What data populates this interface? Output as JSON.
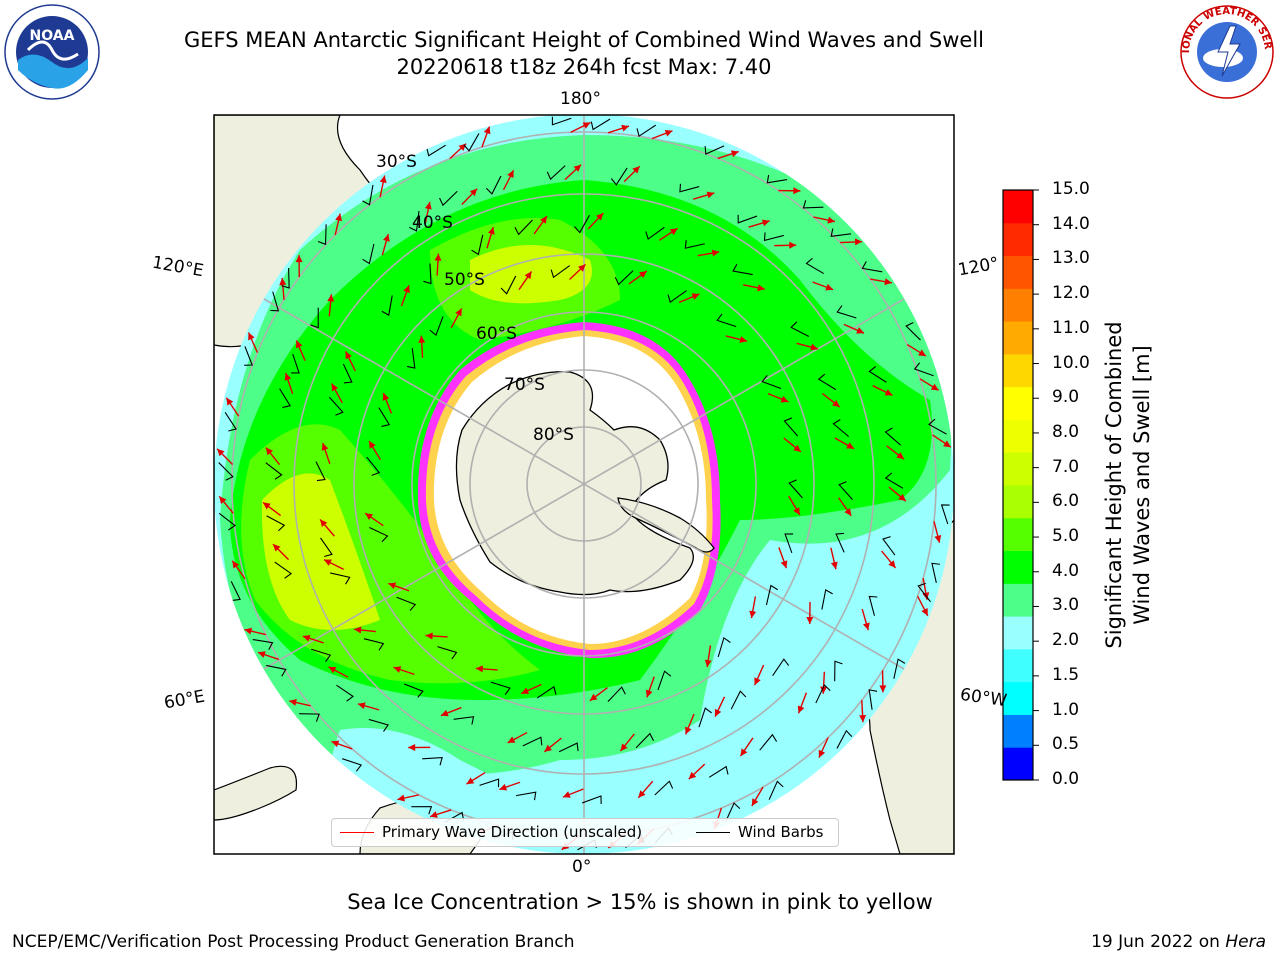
{
  "title": {
    "line1": "GEFS MEAN Antarctic Significant Height of Combined Wind Waves and Swell",
    "line2": "20220618 t18z 264h fcst   Max: 7.40"
  },
  "longitude_labels": {
    "top": "180°",
    "left_upper": "120°E",
    "right_upper": "120°",
    "left_lower": "60°E",
    "right_lower": "60°W",
    "bottom": "0°"
  },
  "latitude_labels": [
    "30°S",
    "40°S",
    "50°S",
    "60°S",
    "70°S",
    "80°S"
  ],
  "colorbar": {
    "title_line1": "Significant Height of Combined",
    "title_line2": "Wind Waves and Swell [m]",
    "ticks": [
      "15.0",
      "14.0",
      "13.0",
      "12.0",
      "11.0",
      "10.0",
      "9.0",
      "8.0",
      "7.0",
      "6.0",
      "5.0",
      "4.0",
      "3.0",
      "2.0",
      "1.5",
      "1.0",
      "0.5",
      "0.0"
    ],
    "colors_bottom_to_top": [
      "#0000ff",
      "#0080ff",
      "#00ffff",
      "#40ffff",
      "#99ffff",
      "#4dff88",
      "#00ff00",
      "#55ff00",
      "#aaff00",
      "#ccff00",
      "#eeff00",
      "#ffff00",
      "#ffd700",
      "#ffaa00",
      "#ff8000",
      "#ff5500",
      "#ff2a00",
      "#ff0000"
    ]
  },
  "legend": {
    "wave_label": "Primary Wave Direction (unscaled)",
    "barb_label": "Wind Barbs",
    "wave_color": "#ff0000",
    "barb_color": "#000000"
  },
  "colors": {
    "land": "#efefdf",
    "ice_shelf": "#ffffff",
    "sea_ice_edge": "#ff33ff",
    "graticule": "#b0b0b0"
  },
  "sea_ice_note": "Sea Ice Concentration > 15% is shown in pink to yellow",
  "footer": {
    "left": "NCEP/EMC/Verification Post Processing Product Generation Branch",
    "right_prefix": "19 Jun 2022 on ",
    "right_host": "Hera"
  },
  "logos": {
    "noaa_text": "NOAA",
    "nws_text": "NATIONAL WEATHER SERVICE"
  }
}
